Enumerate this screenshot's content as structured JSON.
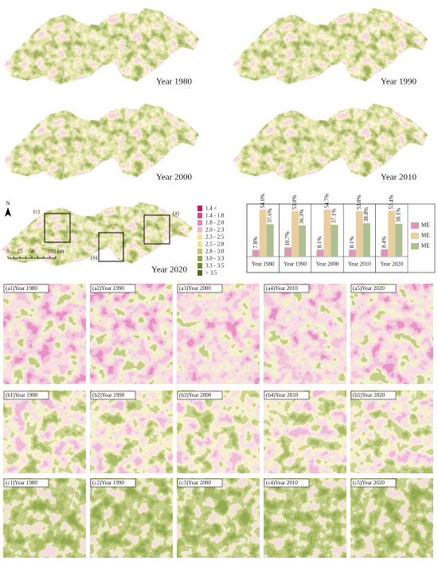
{
  "maps": [
    {
      "label": "Year 1980"
    },
    {
      "label": "Year 1990"
    },
    {
      "label": "Year 2000"
    },
    {
      "label": "Year 2010"
    },
    {
      "label": "Year 2020"
    }
  ],
  "inset_labels": [
    "(a)",
    "(b)",
    "(c)"
  ],
  "north": "N",
  "scale_bar": [
    "0",
    "25",
    "50",
    "100 km"
  ],
  "legend": {
    "classes": [
      "1.4 <",
      "1.4 - 1.8",
      "1.8 - 2.0",
      "2.0 - 2.3",
      "2.3 - 2.5",
      "2.5 - 2.8",
      "2.8 - 3.0",
      "3.0 - 3.3",
      "3.3 - 3.5",
      "> 3.5"
    ],
    "colors": [
      "#c2185b",
      "#d6498a",
      "#e88ab0",
      "#f0b8cc",
      "#f5e3a8",
      "#e9e890",
      "#bccb6e",
      "#93a84a",
      "#6e8b2b",
      "#4d6a16"
    ]
  },
  "chart_data": {
    "type": "bar",
    "categories": [
      "Year 1980",
      "Year 1990",
      "Year 2000",
      "Year 2010",
      "Year 2020"
    ],
    "series": [
      {
        "name": "ME",
        "color": "#dc98b6",
        "values": [
          7.8,
          10.7,
          8.1,
          8.1,
          8.4
        ],
        "value_labels": [
          "7.8%",
          "10.7%",
          "8.1%",
          "8.1%",
          "8.4%"
        ]
      },
      {
        "name": "ME",
        "color": "#e9cf9e",
        "values": [
          54.6,
          53.0,
          54.7,
          53.0,
          53.4
        ],
        "value_labels": [
          "54.6%",
          "53.0%",
          "54.7%",
          "53.0%",
          "53.4%"
        ]
      },
      {
        "name": "ME",
        "color": "#adc093",
        "values": [
          37.6,
          36.3,
          37.1,
          38.8,
          38.1
        ],
        "value_labels": [
          "37.6%",
          "36.3%",
          "37.1%",
          "38.8%",
          "38.1%"
        ]
      }
    ],
    "legend_position": "right"
  },
  "panels": [
    {
      "labels": [
        "(a1)Year 1980",
        "(a2)Year 1990",
        "(a3)Year 2000",
        "(a4)Year 2010",
        "(a5)Year 2020"
      ]
    },
    {
      "labels": [
        "(b1)Year 1980",
        "(b2)Year 1990",
        "(b3)Year 2000",
        "(b4)Year 2010",
        "(b5)Year 2020"
      ]
    },
    {
      "labels": [
        "(c1)Year 1980",
        "(c2)Year 1990",
        "(c3)Year 2000",
        "(c4)Year 2010",
        "(c5)Year 2020"
      ]
    }
  ]
}
